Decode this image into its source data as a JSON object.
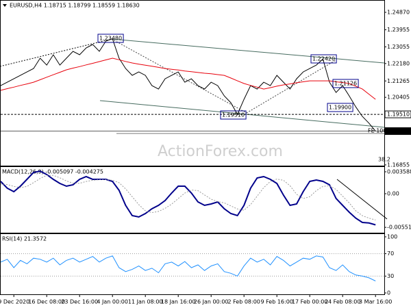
{
  "chart_data": [
    {
      "type": "line",
      "title": "EURUSD,H4 1.18715 1.18799 1.18559 1.18630",
      "watermark": "ActionForex.com",
      "ylim": [
        1.1678,
        1.2541
      ],
      "yticks": [
        {
          "value": 1.2487,
          "label": "1.24870"
        },
        {
          "value": 1.23955,
          "label": "1.23955"
        },
        {
          "value": 1.23055,
          "label": "1.23055"
        },
        {
          "value": 1.2218,
          "label": "1.22180"
        },
        {
          "value": 1.21265,
          "label": "1.21265"
        },
        {
          "value": 1.20405,
          "label": "1.20405"
        },
        {
          "value": 1.16855,
          "label": "1.16855"
        }
      ],
      "markers": [
        {
          "value": 1.1951,
          "label": "1.19510"
        },
        {
          "value": 1.1863,
          "label": "1.18630"
        }
      ],
      "annotations": [
        "1.23480",
        "1.22420",
        "1.21126",
        "1.19900",
        "1.19510",
        "FE 100.0",
        "38.2"
      ],
      "series": [
        {
          "color": "#000000",
          "width": 1,
          "values": [
            1.2102,
            1.212,
            1.2138,
            1.2156,
            1.2174,
            1.2192,
            1.2246,
            1.221,
            1.2264,
            1.221,
            1.2246,
            1.2282,
            1.2264,
            1.23,
            1.2318,
            1.2282,
            1.2336,
            1.2348,
            1.2246,
            1.2192,
            1.2156,
            1.2174,
            1.2156,
            1.2102,
            1.2084,
            1.2138,
            1.2156,
            1.2174,
            1.212,
            1.2138,
            1.2102,
            1.2084,
            1.212,
            1.2102,
            1.2048,
            1.2012,
            1.1951,
            1.203,
            1.2102,
            1.2084,
            1.212,
            1.2102,
            1.2156,
            1.212,
            1.2084,
            1.2138,
            1.2174,
            1.2192,
            1.221,
            1.2242,
            1.212,
            1.2066,
            1.2102,
            1.2048,
            1.199,
            1.194,
            1.1905,
            1.1863
          ]
        },
        {
          "color": "#e8000b",
          "width": 1,
          "values": [
            1.2077,
            1.2086,
            1.2094,
            1.2103,
            1.2111,
            1.212,
            1.2133,
            1.2146,
            1.2159,
            1.2172,
            1.2185,
            1.2194,
            1.2202,
            1.2211,
            1.2219,
            1.2228,
            1.2237,
            1.2246,
            1.2238,
            1.2229,
            1.2221,
            1.2215,
            1.2209,
            1.2204,
            1.2198,
            1.2192,
            1.2188,
            1.2184,
            1.2179,
            1.2175,
            1.2171,
            1.2167,
            1.2164,
            1.216,
            1.2156,
            1.2142,
            1.2127,
            1.2113,
            1.2103,
            1.2094,
            1.2084,
            1.2091,
            1.2099,
            1.2106,
            1.2111,
            1.2117,
            1.2122,
            1.2127,
            1.2127,
            1.2127,
            1.2127,
            1.2122,
            1.2118,
            1.2113,
            1.2099,
            1.2084,
            1.2057,
            1.203
          ]
        }
      ]
    },
    {
      "type": "line",
      "title": "MACD(12,26,9) -0.005097 -0.004275",
      "ylim": [
        -0.00639,
        0.00437
      ],
      "yticks": [
        0.003588,
        {
          "value": 0,
          "label": "0.00"
        },
        -0.005511
      ],
      "series": [
        {
          "color": "#00008b",
          "width": 2,
          "values": [
            0.00202,
            0.0009,
            0.00034,
            0.00123,
            0.00235,
            0.00348,
            0.0037,
            0.00314,
            0.00235,
            0.00168,
            0.00123,
            0.00146,
            0.00235,
            0.0028,
            0.00235,
            0.00235,
            0.00235,
            0.00202,
            0.00056,
            -0.00191,
            -0.00359,
            -0.00381,
            -0.00325,
            -0.00247,
            -0.00191,
            -0.00112,
            0.00011,
            0.00123,
            0.00123,
            0.00011,
            -0.00135,
            -0.00191,
            -0.00168,
            -0.00135,
            -0.00247,
            -0.00325,
            -0.00359,
            -0.00191,
            0.0009,
            0.00258,
            0.0028,
            0.00235,
            0.00168,
            -0.00022,
            -0.00191,
            -0.00168,
            0.00034,
            0.00202,
            0.00224,
            0.00202,
            0.00146,
            -0.00078,
            -0.00191,
            -0.00303,
            -0.004,
            -0.00471,
            -0.0048,
            -0.0051
          ]
        },
        {
          "color": "#999999",
          "width": 1,
          "dash": true,
          "values": [
            0.0016,
            0.0015,
            0.0012,
            0.001,
            0.0012,
            0.0018,
            0.0025,
            0.003,
            0.003,
            0.0026,
            0.0021,
            0.0017,
            0.0017,
            0.002,
            0.0022,
            0.0023,
            0.0023,
            0.0022,
            0.0018,
            0.0008,
            -0.0005,
            -0.0018,
            -0.0028,
            -0.0031,
            -0.0029,
            -0.0024,
            -0.0017,
            -0.0008,
            0.0001,
            0.0006,
            0.0005,
            -0.0002,
            -0.0009,
            -0.0013,
            -0.0015,
            -0.002,
            -0.0025,
            -0.0027,
            -0.0018,
            -0.0004,
            0.001,
            0.002,
            0.0024,
            0.0022,
            0.0013,
            -0.0001,
            -0.0008,
            -0.0005,
            0.0005,
            0.0012,
            0.0013,
            0.0007,
            -0.0004,
            -0.0015,
            -0.0028,
            -0.0036,
            -0.004,
            -0.0043
          ]
        }
      ]
    },
    {
      "type": "line",
      "title": "RSI(14) 21.3572",
      "ylim": [
        0,
        100
      ],
      "yticks": [
        100,
        70,
        30,
        0
      ],
      "categories": [
        null,
        null,
        "9 Dec 2020",
        null,
        null,
        null,
        null,
        "16 Dec 08:00",
        null,
        null,
        null,
        null,
        "23 Dec 16:00",
        null,
        null,
        null,
        null,
        "4 Jan 00:00",
        null,
        null,
        null,
        null,
        "11 Jan 08:00",
        null,
        null,
        null,
        null,
        "18 Jan 16:00",
        null,
        null,
        null,
        null,
        "26 Jan 00:00",
        null,
        null,
        null,
        null,
        "2 Feb 08:00",
        null,
        null,
        null,
        null,
        "9 Feb 16:00",
        null,
        null,
        null,
        null,
        "17 Feb 00:00",
        null,
        null,
        null,
        null,
        "24 Feb 08:00",
        null,
        null,
        null,
        null,
        "3 Mar 16:00"
      ],
      "series": [
        {
          "color": "#1e90ff",
          "width": 1,
          "values": [
            55,
            60,
            45,
            58,
            52,
            62,
            60,
            55,
            62,
            50,
            58,
            62,
            55,
            60,
            65,
            55,
            62,
            66,
            45,
            38,
            42,
            48,
            40,
            44,
            36,
            52,
            55,
            48,
            56,
            45,
            50,
            40,
            48,
            52,
            38,
            35,
            30,
            48,
            62,
            55,
            60,
            50,
            65,
            58,
            48,
            55,
            62,
            60,
            66,
            64,
            45,
            40,
            50,
            38,
            32,
            30,
            27,
            21.3572
          ]
        }
      ]
    }
  ]
}
